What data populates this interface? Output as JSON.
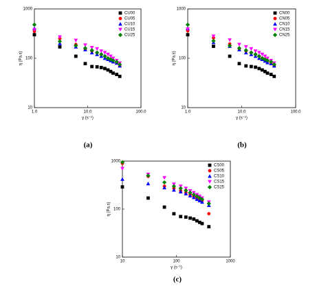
{
  "chart_data": [
    {
      "type": "scatter",
      "caption": "(a)",
      "xlabel": "γ (s⁻¹)",
      "ylabel": "η (Pa.s)",
      "xscale": "log",
      "yscale": "log",
      "legend": "upper right",
      "xlim": [
        1,
        100
      ],
      "xticks": [
        {
          "value": 1,
          "label": "1.0"
        },
        {
          "value": 10,
          "label": "10.0"
        },
        {
          "value": 100,
          "label": "100.0"
        }
      ],
      "ylim": [
        10,
        1000
      ],
      "yticks": [
        10,
        100,
        1000
      ],
      "x": [
        1,
        3,
        6,
        9,
        12,
        15,
        18,
        21,
        24,
        27,
        30,
        35,
        40
      ],
      "series": [
        {
          "name": "CU00",
          "color": "#000000",
          "marker": "square",
          "values": [
            300,
            170,
            110,
            78,
            68,
            67,
            65,
            62,
            58,
            54,
            50,
            47,
            43
          ]
        },
        {
          "name": "CU05",
          "color": "#ff0000",
          "marker": "circle",
          "values": [
            350,
            250,
            190,
            150,
            140,
            130,
            120,
            110,
            100,
            95,
            90,
            80,
            70
          ]
        },
        {
          "name": "CU10",
          "color": "#0000ff",
          "marker": "triangle-up",
          "values": [
            400,
            200,
            170,
            150,
            130,
            120,
            110,
            100,
            95,
            90,
            85,
            80,
            70
          ]
        },
        {
          "name": "CU15",
          "color": "#ff00ff",
          "marker": "triangle-down",
          "values": [
            380,
            270,
            230,
            185,
            165,
            155,
            140,
            130,
            120,
            110,
            100,
            90,
            80
          ]
        },
        {
          "name": "CU25",
          "color": "#008000",
          "marker": "diamond",
          "values": [
            480,
            220,
            180,
            160,
            145,
            130,
            120,
            110,
            100,
            95,
            90,
            85,
            75
          ]
        }
      ]
    },
    {
      "type": "scatter",
      "caption": "(b)",
      "xlabel": "γ (s⁻¹)",
      "ylabel": "η (Pa.s)",
      "xscale": "log",
      "yscale": "log",
      "legend": "upper right",
      "xlim": [
        1,
        100
      ],
      "xticks": [
        {
          "value": 1,
          "label": "1.0"
        },
        {
          "value": 10,
          "label": "10.0"
        },
        {
          "value": 100,
          "label": "100.0"
        }
      ],
      "ylim": [
        10,
        1000
      ],
      "yticks": [
        10,
        100,
        1000
      ],
      "x": [
        1,
        3,
        6,
        9,
        12,
        15,
        18,
        21,
        24,
        27,
        30,
        35,
        40
      ],
      "series": [
        {
          "name": "CN00",
          "color": "#000000",
          "marker": "square",
          "values": [
            300,
            175,
            110,
            78,
            70,
            68,
            66,
            62,
            58,
            54,
            50,
            47,
            43
          ]
        },
        {
          "name": "CN05",
          "color": "#ff0000",
          "marker": "circle",
          "values": [
            360,
            260,
            195,
            155,
            140,
            130,
            120,
            110,
            100,
            95,
            88,
            80,
            70
          ]
        },
        {
          "name": "CN10",
          "color": "#0000ff",
          "marker": "triangle-up",
          "values": [
            400,
            210,
            175,
            150,
            130,
            120,
            110,
            100,
            95,
            88,
            82,
            78,
            70
          ]
        },
        {
          "name": "CN15",
          "color": "#ff00ff",
          "marker": "triangle-down",
          "values": [
            390,
            280,
            235,
            190,
            170,
            155,
            140,
            130,
            120,
            110,
            100,
            90,
            80
          ]
        },
        {
          "name": "CN25",
          "color": "#008000",
          "marker": "diamond",
          "values": [
            480,
            225,
            180,
            160,
            145,
            130,
            120,
            110,
            100,
            95,
            90,
            85,
            75
          ]
        }
      ]
    },
    {
      "type": "scatter",
      "caption": "(c)",
      "xlabel": "γ (s⁻¹)",
      "ylabel": "η (Pa.s)",
      "xscale": "log",
      "yscale": "log",
      "legend": "upper right",
      "xlim": [
        10,
        1000
      ],
      "xticks": [
        10,
        100,
        1000
      ],
      "ylim": [
        10,
        1000
      ],
      "yticks": [
        10,
        100,
        1000
      ],
      "x": [
        10,
        30,
        60,
        90,
        120,
        150,
        180,
        210,
        240,
        270,
        300,
        400
      ],
      "series": [
        {
          "name": "CS00",
          "color": "#000000",
          "marker": "square",
          "values": [
            290,
            170,
            110,
            80,
            70,
            68,
            65,
            62,
            57,
            53,
            50,
            43
          ]
        },
        {
          "name": "CS05",
          "color": "#ff0000",
          "marker": "circle",
          "values": [
            900,
            480,
            300,
            270,
            240,
            220,
            200,
            185,
            170,
            160,
            150,
            80
          ]
        },
        {
          "name": "CS10",
          "color": "#0000ff",
          "marker": "triangle-up",
          "values": [
            420,
            340,
            280,
            250,
            230,
            210,
            190,
            175,
            160,
            150,
            140,
            120
          ]
        },
        {
          "name": "CS15",
          "color": "#ff00ff",
          "marker": "triangle-down",
          "values": [
            700,
            530,
            450,
            330,
            300,
            270,
            240,
            220,
            200,
            185,
            170,
            140
          ]
        },
        {
          "name": "CS25",
          "color": "#008000",
          "marker": "diamond",
          "values": [
            950,
            500,
            360,
            300,
            270,
            245,
            220,
            200,
            185,
            170,
            160,
            130
          ]
        }
      ]
    }
  ]
}
